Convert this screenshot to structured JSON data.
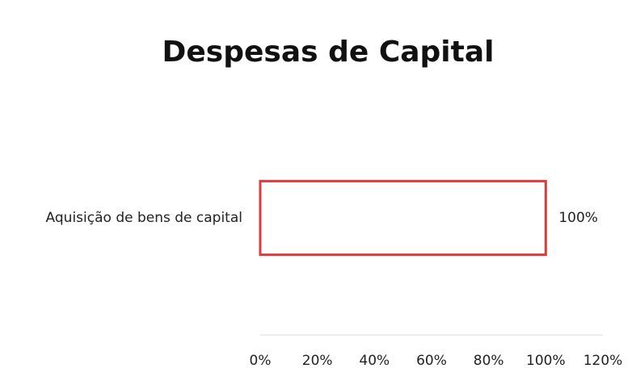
{
  "chart_data": {
    "type": "bar",
    "orientation": "horizontal",
    "title": "Despesas de Capital",
    "categories": [
      "Aquisição de bens de capital"
    ],
    "values": [
      100
    ],
    "value_labels": [
      "100%"
    ],
    "color": "#ffffff",
    "edge_color": "#e03a3a",
    "xlim": [
      0,
      120
    ],
    "xticks": [
      {
        "value": 0,
        "label": "0%"
      },
      {
        "value": 20,
        "label": "20%"
      },
      {
        "value": 40,
        "label": "40%"
      },
      {
        "value": 60,
        "label": "60%"
      },
      {
        "value": 80,
        "label": "80%"
      },
      {
        "value": 100,
        "label": "100%"
      },
      {
        "value": 120,
        "label": "120%"
      }
    ],
    "grid": false
  }
}
